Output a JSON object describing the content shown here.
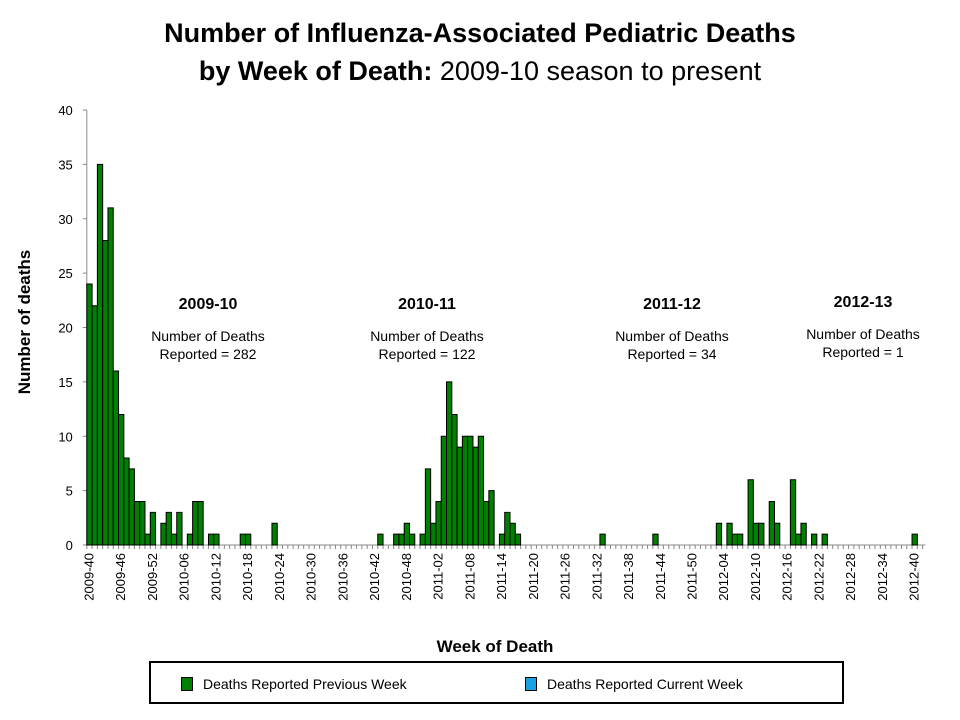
{
  "title": {
    "line1": "Number of Influenza-Associated Pediatric Deaths",
    "line2_bold": "by Week of Death:",
    "line2_rest": " 2009-10 season to present"
  },
  "chart_data": {
    "type": "bar",
    "title": "Number of Influenza-Associated Pediatric Deaths by Week of Death: 2009-10 season to present",
    "xlabel": "Week of Death",
    "ylabel": "Number of deaths",
    "ylim": [
      0,
      40
    ],
    "yticks": [
      0,
      5,
      10,
      15,
      20,
      25,
      30,
      35,
      40
    ],
    "tick_labels": [
      "2009-40",
      "2009-46",
      "2009-52",
      "2010-06",
      "2010-12",
      "2010-18",
      "2010-24",
      "2010-30",
      "2010-36",
      "2010-42",
      "2010-48",
      "2011-02",
      "2011-08",
      "2011-14",
      "2011-20",
      "2011-26",
      "2011-32",
      "2011-38",
      "2011-44",
      "2011-50",
      "2012-04",
      "2012-10",
      "2012-16",
      "2012-22",
      "2012-28",
      "2012-34",
      "2012-40"
    ],
    "first_week": "2009-40",
    "last_week": "2012-40",
    "series": [
      {
        "name": "Deaths Reported Previous Week",
        "color": "#008000",
        "values": [
          24,
          22,
          35,
          28,
          31,
          16,
          12,
          8,
          7,
          4,
          4,
          1,
          3,
          0,
          2,
          3,
          1,
          3,
          0,
          1,
          4,
          4,
          0,
          1,
          1,
          0,
          0,
          0,
          0,
          1,
          1,
          0,
          0,
          0,
          0,
          2,
          0,
          0,
          0,
          0,
          0,
          0,
          0,
          0,
          0,
          0,
          0,
          0,
          0,
          0,
          0,
          0,
          0,
          0,
          0,
          1,
          0,
          0,
          1,
          1,
          2,
          1,
          0,
          1,
          7,
          2,
          4,
          10,
          15,
          12,
          9,
          10,
          10,
          9,
          10,
          4,
          5,
          0,
          1,
          3,
          2,
          1,
          0,
          0,
          0,
          0,
          0,
          0,
          0,
          0,
          0,
          0,
          0,
          0,
          0,
          0,
          0,
          1,
          0,
          0,
          0,
          0,
          0,
          0,
          0,
          0,
          0,
          1,
          0,
          0,
          0,
          0,
          0,
          0,
          0,
          0,
          0,
          0,
          0,
          2,
          0,
          2,
          1,
          1,
          0,
          6,
          2,
          2,
          0,
          4,
          2,
          0,
          0,
          6,
          1,
          2,
          0,
          1,
          0,
          1,
          0,
          0,
          0,
          0,
          0,
          0,
          0,
          0,
          0,
          0,
          0,
          0,
          0,
          0,
          0,
          0,
          1
        ]
      },
      {
        "name": "Deaths Reported Current Week",
        "color": "#1ba1e2",
        "values": []
      }
    ],
    "annotations": [
      {
        "season": "2009-10",
        "line1": "Number of Deaths",
        "line2": "Reported = 282"
      },
      {
        "season": "2010-11",
        "line1": "Number of Deaths",
        "line2": "Reported = 122"
      },
      {
        "season": "2011-12",
        "line1": "Number of Deaths",
        "line2": "Reported = 34"
      },
      {
        "season": "2012-13",
        "line1": "Number of Deaths",
        "line2": "Reported = 1"
      }
    ],
    "grid": false,
    "legend": "bottom"
  }
}
